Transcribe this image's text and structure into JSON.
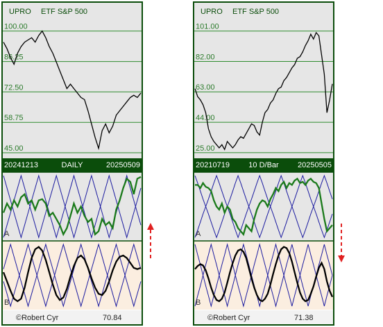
{
  "panels": [
    {
      "header": {
        "symbol": "UPRO",
        "name": "ETF S&P 500"
      },
      "price": {
        "type": "line",
        "color": "#000000",
        "ylim": [
          42.5,
          113.1
        ],
        "yticks": [
          {
            "value": 100,
            "label": "100.00"
          },
          {
            "value": 86.25,
            "label": "86.25"
          },
          {
            "value": 72.5,
            "label": "72.50"
          },
          {
            "value": 58.75,
            "label": "58.75"
          },
          {
            "value": 45,
            "label": "45.00"
          }
        ],
        "values": [
          95,
          92,
          88,
          85,
          90,
          93,
          95,
          96,
          97,
          95,
          98,
          100,
          97,
          93,
          90,
          86,
          82,
          78,
          74,
          76,
          74,
          72,
          70,
          69,
          64,
          58,
          52,
          47,
          55,
          58,
          54,
          57,
          62,
          64,
          66,
          68,
          70,
          71,
          70,
          72
        ]
      },
      "date_bar": {
        "start": "20241213",
        "label": "DAILY",
        "end": "20250509"
      },
      "osc_a": {
        "label": "A",
        "ylim": [
          0,
          100
        ],
        "series": [
          {
            "color": "#1c1ca0",
            "values": [
              100,
              80,
              60,
              40,
              20,
              0,
              20,
              40,
              60,
              80,
              100,
              80,
              60,
              40,
              20,
              0,
              20,
              40,
              60,
              80,
              100,
              80,
              60,
              40,
              20,
              0,
              20,
              40,
              60,
              80,
              100,
              80,
              60,
              40,
              20,
              0,
              20,
              40,
              60,
              80
            ]
          },
          {
            "color": "#1c1ca0",
            "values": [
              0,
              20,
              40,
              60,
              80,
              100,
              80,
              60,
              40,
              20,
              0,
              20,
              40,
              60,
              80,
              100,
              80,
              60,
              40,
              20,
              0,
              20,
              40,
              60,
              80,
              100,
              80,
              60,
              40,
              20,
              0,
              20,
              40,
              60,
              80,
              100,
              80,
              60,
              40,
              20
            ]
          },
          {
            "color": "#1a7a1a",
            "values": [
              40,
              55,
              45,
              60,
              50,
              65,
              70,
              55,
              60,
              45,
              60,
              62,
              55,
              35,
              40,
              30,
              20,
              5,
              15,
              35,
              55,
              40,
              50,
              35,
              25,
              30,
              5,
              10,
              30,
              20,
              25,
              15,
              45,
              60,
              80,
              95,
              90,
              70,
              95,
              98
            ]
          }
        ]
      },
      "osc_b": {
        "label": "B",
        "ylim": [
          0,
          100
        ],
        "series": [
          {
            "color": "#1c1ca0",
            "values": [
              60,
              80,
              100,
              80,
              60,
              40,
              20,
              0,
              20,
              40,
              60,
              80,
              100,
              80,
              60,
              40,
              20,
              0,
              20,
              40,
              60,
              80,
              100,
              80,
              60,
              40,
              20,
              0,
              20,
              40,
              60,
              80,
              100,
              80,
              60,
              40,
              20,
              0,
              20,
              40
            ]
          },
          {
            "color": "#1c1ca0",
            "values": [
              40,
              20,
              0,
              20,
              40,
              60,
              80,
              100,
              80,
              60,
              40,
              20,
              0,
              20,
              40,
              60,
              80,
              100,
              80,
              60,
              40,
              20,
              0,
              20,
              40,
              60,
              80,
              100,
              80,
              60,
              40,
              20,
              0,
              20,
              40,
              60,
              80,
              100,
              80,
              60
            ]
          },
          {
            "color": "#000000",
            "values": [
              55,
              40,
              25,
              12,
              8,
              12,
              30,
              55,
              78,
              92,
              96,
              90,
              75,
              55,
              35,
              18,
              10,
              14,
              28,
              48,
              65,
              78,
              82,
              76,
              62,
              45,
              30,
              20,
              18,
              25,
              40,
              58,
              72,
              80,
              82,
              78,
              70,
              62,
              60,
              62
            ]
          }
        ]
      },
      "footer": {
        "credit": "©Robert Cyr",
        "value": 70.84
      }
    },
    {
      "header": {
        "symbol": "UPRO",
        "name": "ETF S&P 500"
      },
      "price": {
        "type": "line",
        "color": "#000000",
        "ylim": [
          21.5,
          119.1
        ],
        "yticks": [
          {
            "value": 101,
            "label": "101.00"
          },
          {
            "value": 82,
            "label": "82.00"
          },
          {
            "value": 63,
            "label": "63.00"
          },
          {
            "value": 44,
            "label": "44.00"
          },
          {
            "value": 25,
            "label": "25.00"
          }
        ],
        "values": [
          65,
          60,
          58,
          55,
          50,
          40,
          35,
          32,
          30,
          28,
          30,
          27,
          32,
          30,
          28,
          30,
          33,
          35,
          34,
          37,
          40,
          43,
          42,
          38,
          36,
          44,
          50,
          52,
          56,
          58,
          62,
          65,
          66,
          70,
          72,
          75,
          78,
          80,
          84,
          85,
          88,
          92,
          95,
          99,
          96,
          100,
          98,
          86,
          74,
          50,
          58,
          68
        ]
      },
      "date_bar": {
        "start": "20210719",
        "label": "10 D/Bar",
        "end": "20250505"
      },
      "osc_a": {
        "label": "A",
        "ylim": [
          0,
          100
        ],
        "series": [
          {
            "color": "#1c1ca0",
            "values": [
              100,
              88,
              75,
              62,
              50,
              38,
              25,
              12,
              0,
              12,
              25,
              38,
              50,
              62,
              75,
              88,
              100,
              88,
              75,
              62,
              50,
              38,
              25,
              12,
              0,
              12,
              25,
              38,
              50,
              62,
              75,
              88,
              100,
              88,
              75,
              62,
              50,
              38,
              25,
              12,
              0,
              12,
              25,
              38,
              50,
              62,
              75,
              88,
              100,
              88,
              75,
              62
            ]
          },
          {
            "color": "#1c1ca0",
            "values": [
              0,
              12,
              25,
              38,
              50,
              62,
              75,
              88,
              100,
              88,
              75,
              62,
              50,
              38,
              25,
              12,
              0,
              12,
              25,
              38,
              50,
              62,
              75,
              88,
              100,
              88,
              75,
              62,
              50,
              38,
              25,
              12,
              0,
              12,
              25,
              38,
              50,
              62,
              75,
              88,
              100,
              88,
              75,
              62,
              50,
              38,
              25,
              12,
              0,
              12,
              25,
              38
            ]
          },
          {
            "color": "#1a7a1a",
            "values": [
              85,
              85,
              80,
              88,
              82,
              80,
              75,
              60,
              50,
              45,
              55,
              40,
              50,
              45,
              30,
              25,
              15,
              10,
              5,
              20,
              15,
              10,
              30,
              45,
              55,
              60,
              58,
              50,
              62,
              70,
              80,
              75,
              85,
              90,
              80,
              88,
              85,
              92,
              95,
              88,
              90,
              85,
              92,
              95,
              90,
              88,
              80,
              55,
              30,
              10,
              15,
              20
            ]
          }
        ]
      },
      "osc_b": {
        "label": "B",
        "ylim": [
          0,
          100
        ],
        "series": [
          {
            "color": "#1c1ca0",
            "values": [
              0,
              17,
              33,
              50,
              67,
              83,
              100,
              83,
              67,
              50,
              33,
              17,
              0,
              17,
              33,
              50,
              67,
              83,
              100,
              83,
              67,
              50,
              33,
              17,
              0,
              17,
              33,
              50,
              67,
              83,
              100,
              83,
              67,
              50,
              33,
              17,
              0,
              17,
              33,
              50,
              67,
              83,
              100,
              83,
              67,
              50,
              33,
              17,
              0,
              17,
              33,
              50
            ]
          },
          {
            "color": "#1c1ca0",
            "values": [
              100,
              83,
              67,
              50,
              33,
              17,
              0,
              17,
              33,
              50,
              67,
              83,
              100,
              83,
              67,
              50,
              33,
              17,
              0,
              17,
              33,
              50,
              67,
              83,
              100,
              83,
              67,
              50,
              33,
              17,
              0,
              17,
              33,
              50,
              67,
              83,
              100,
              83,
              67,
              50,
              33,
              17,
              0,
              17,
              33,
              50,
              67,
              83,
              100,
              83,
              67,
              50
            ]
          },
          {
            "color": "#000000",
            "values": [
              60,
              65,
              68,
              66,
              58,
              45,
              30,
              18,
              10,
              8,
              12,
              22,
              38,
              55,
              70,
              82,
              90,
              92,
              88,
              78,
              62,
              45,
              30,
              18,
              10,
              8,
              12,
              20,
              35,
              52,
              68,
              82,
              92,
              96,
              94,
              86,
              72,
              55,
              38,
              22,
              12,
              8,
              10,
              20,
              32,
              48,
              62,
              70,
              60,
              40,
              25,
              15
            ]
          }
        ]
      },
      "footer": {
        "credit": "©Robert Cyr",
        "value": 71.38
      }
    }
  ]
}
